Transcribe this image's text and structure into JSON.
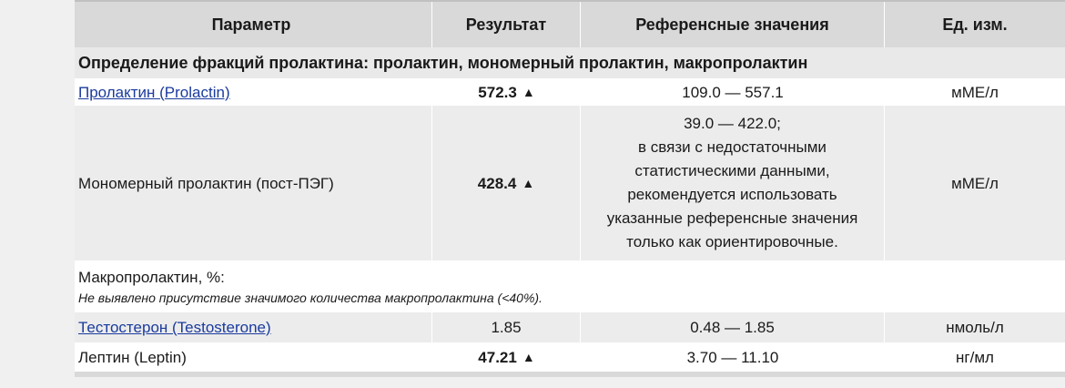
{
  "headers": {
    "param": "Параметр",
    "result": "Результат",
    "reference": "Референсные значения",
    "unit": "Ед. изм."
  },
  "section_title": "Определение фракций пролактина: пролактин, мономерный пролактин, макропролактин",
  "rows": {
    "prolactin": {
      "name": "Пролактин (Prolactin)",
      "result": "572.3",
      "flag": "▲",
      "reference": "109.0 — 557.1",
      "unit": "мМЕ/л"
    },
    "monomeric": {
      "name": "Мономерный пролактин (пост-ПЭГ)",
      "result": "428.4",
      "flag": "▲",
      "reference_lines": [
        "39.0 — 422.0;",
        "в связи с недостаточными",
        "статистическими данными,",
        "рекомендуется использовать",
        "указанные референсные значения",
        "только как ориентировочные."
      ],
      "unit": "мМЕ/л"
    },
    "macroprolactin": {
      "name": "Макропролактин, %:",
      "note": "Не выявлено присутствие значимого количества макропролактина (<40%)."
    },
    "testosterone": {
      "name": "Тестостерон (Testosterone)",
      "result": "1.85",
      "reference": "0.48 — 1.85",
      "unit": "нмоль/л"
    },
    "leptin": {
      "name": "Лептин (Leptin)",
      "result": "47.21",
      "flag": "▲",
      "reference": "3.70 — 11.10",
      "unit": "нг/мл"
    }
  }
}
